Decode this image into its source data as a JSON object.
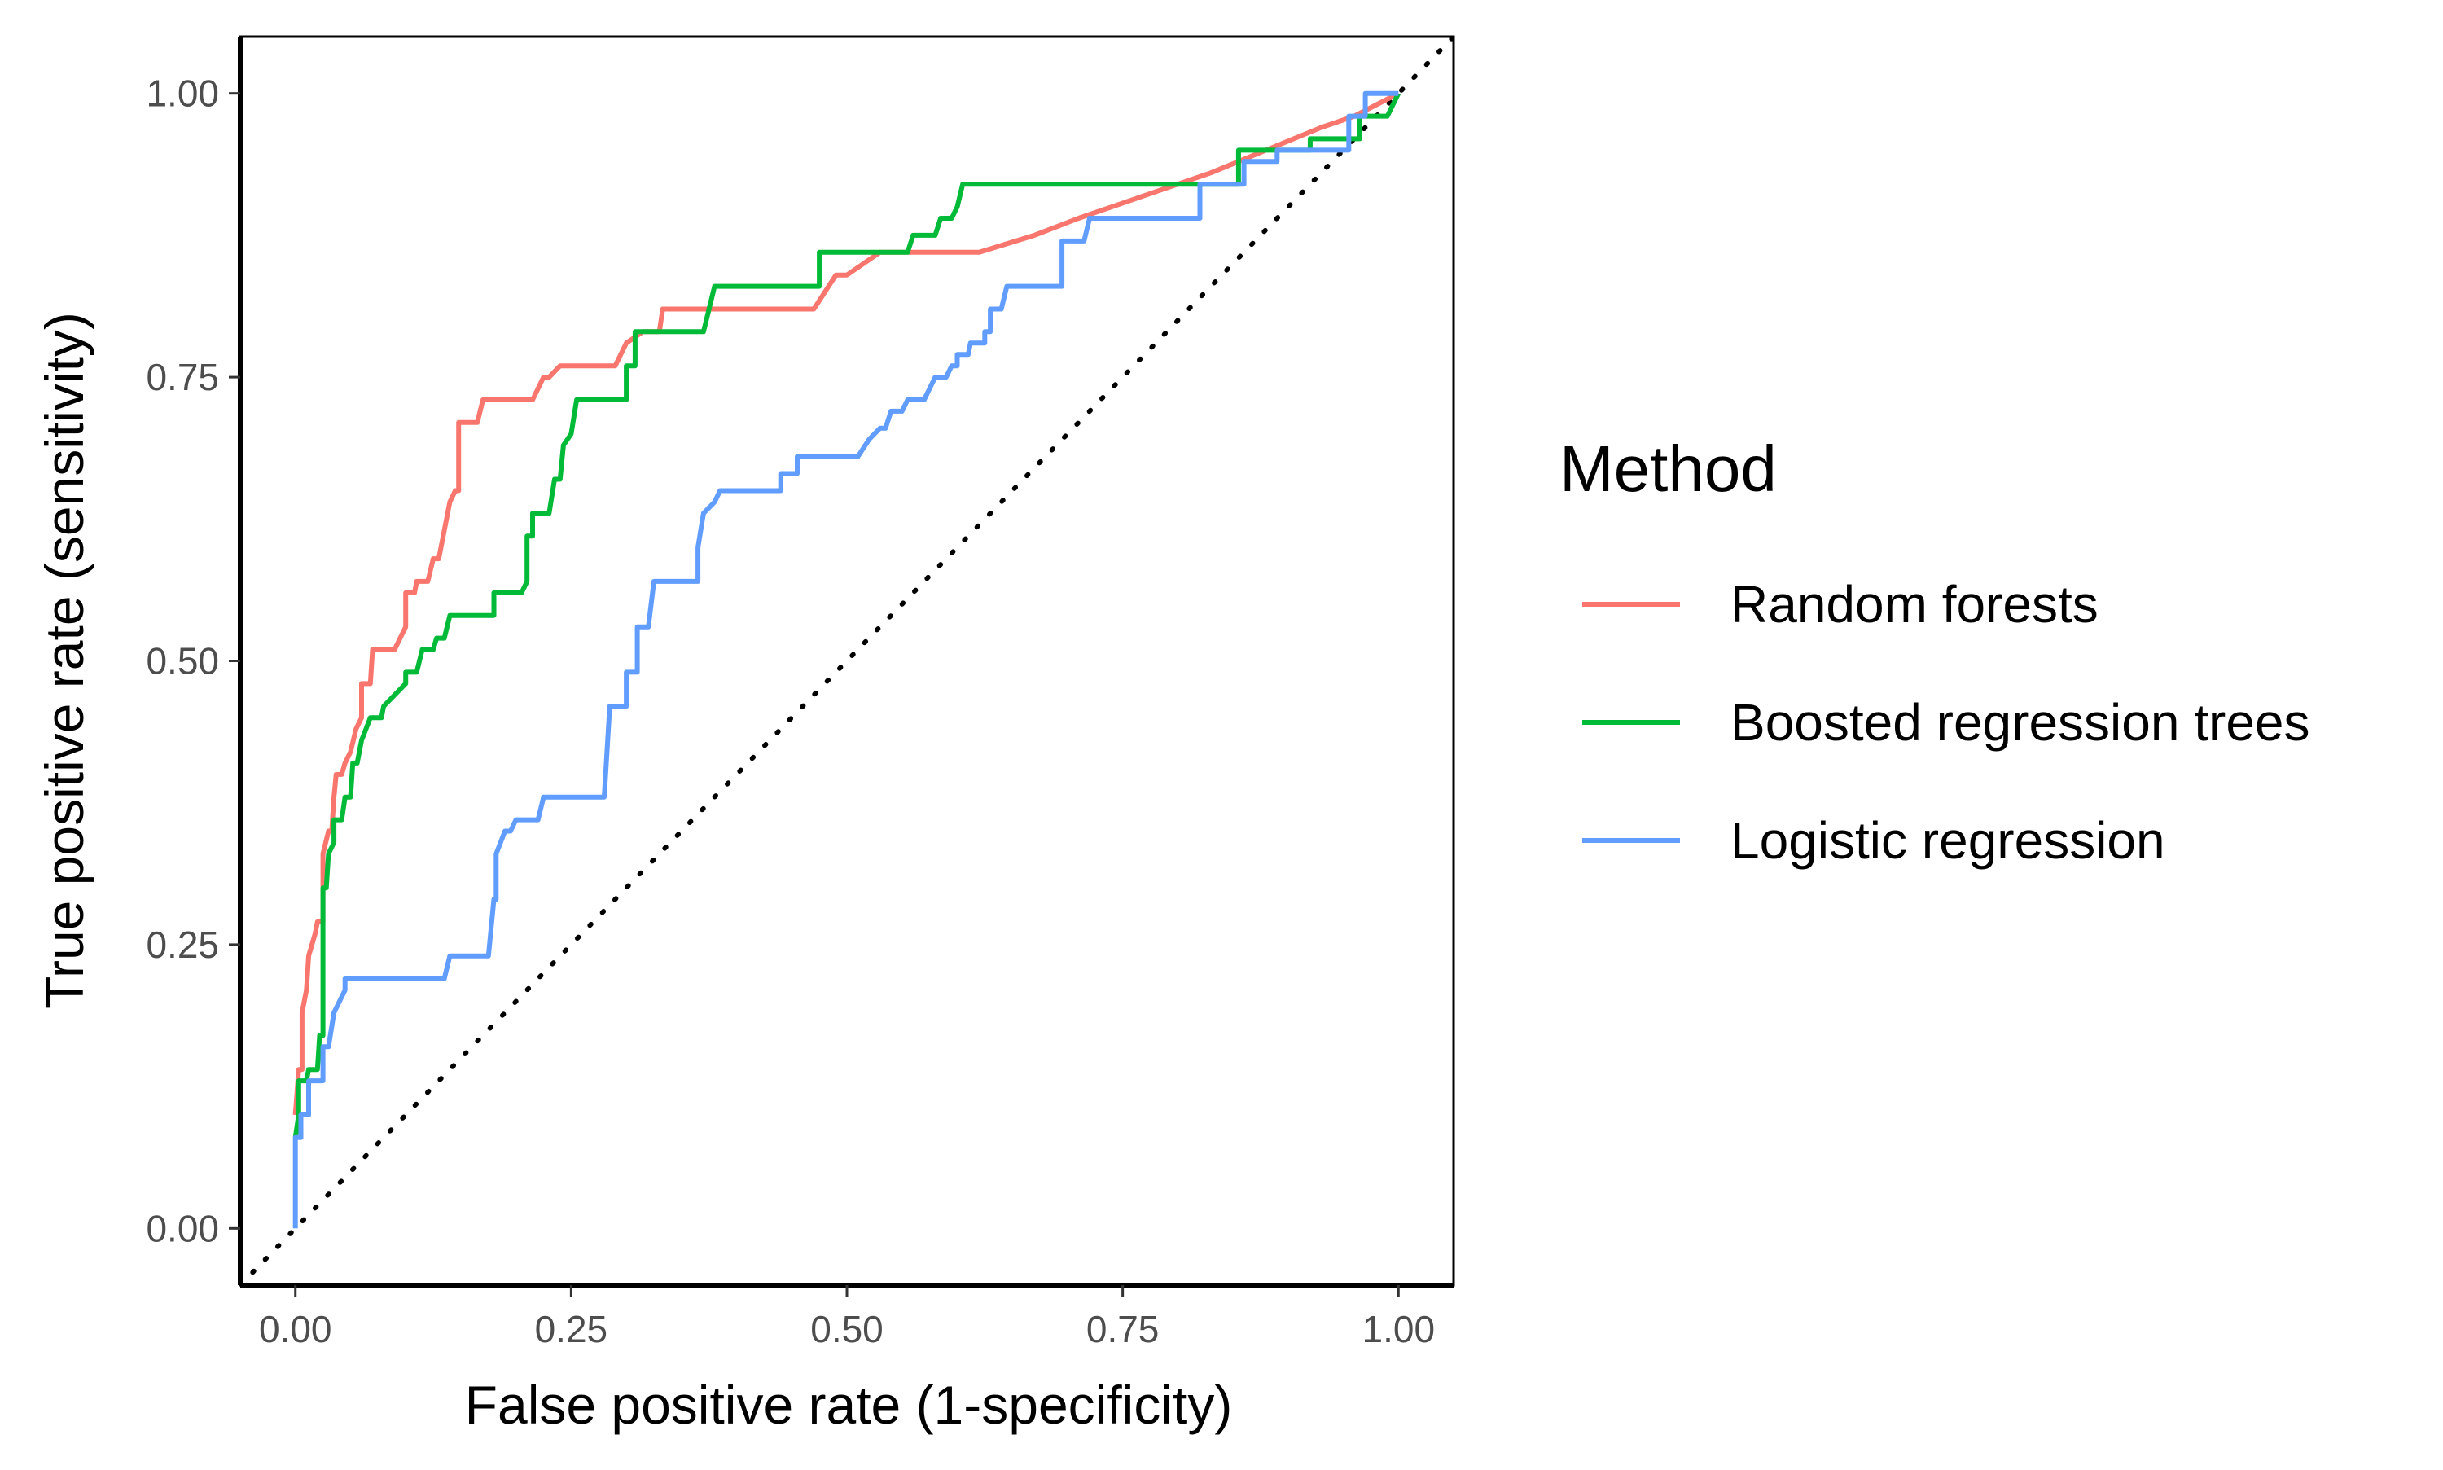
{
  "chart_data": {
    "type": "line",
    "title": "",
    "xlabel": "False positive rate (1-specificity)",
    "ylabel": "True positive rate (sensitivity)",
    "xlim": [
      -0.05,
      1.05
    ],
    "ylim": [
      -0.05,
      1.05
    ],
    "x_ticks": [
      0.0,
      0.25,
      0.5,
      0.75,
      1.0
    ],
    "y_ticks": [
      0.0,
      0.25,
      0.5,
      0.75,
      1.0
    ],
    "x_tick_labels": [
      "0.00",
      "0.25",
      "0.50",
      "0.75",
      "1.00"
    ],
    "y_tick_labels": [
      "0.00",
      "0.25",
      "0.50",
      "0.75",
      "1.00"
    ],
    "grid": false,
    "legend_title": "Method",
    "legend_position": "right",
    "reference_line": {
      "style": "dotted",
      "color": "#000000",
      "points": [
        [
          -0.05,
          -0.05
        ],
        [
          1.05,
          1.05
        ]
      ]
    },
    "series": [
      {
        "name": "Random forests",
        "color": "#F8766D",
        "points": [
          [
            0,
            0.1
          ],
          [
            0.003,
            0.14
          ],
          [
            0.006,
            0.14
          ],
          [
            0.006,
            0.19
          ],
          [
            0.01,
            0.21
          ],
          [
            0.012,
            0.24
          ],
          [
            0.018,
            0.26
          ],
          [
            0.02,
            0.27
          ],
          [
            0.025,
            0.27
          ],
          [
            0.025,
            0.33
          ],
          [
            0.03,
            0.35
          ],
          [
            0.033,
            0.35
          ],
          [
            0.035,
            0.38
          ],
          [
            0.037,
            0.4
          ],
          [
            0.042,
            0.4
          ],
          [
            0.045,
            0.41
          ],
          [
            0.05,
            0.42
          ],
          [
            0.055,
            0.44
          ],
          [
            0.06,
            0.45
          ],
          [
            0.06,
            0.48
          ],
          [
            0.068,
            0.48
          ],
          [
            0.07,
            0.51
          ],
          [
            0.09,
            0.51
          ],
          [
            0.095,
            0.52
          ],
          [
            0.1,
            0.53
          ],
          [
            0.1,
            0.56
          ],
          [
            0.108,
            0.56
          ],
          [
            0.11,
            0.57
          ],
          [
            0.12,
            0.57
          ],
          [
            0.125,
            0.59
          ],
          [
            0.13,
            0.59
          ],
          [
            0.14,
            0.64
          ],
          [
            0.145,
            0.65
          ],
          [
            0.148,
            0.65
          ],
          [
            0.148,
            0.71
          ],
          [
            0.165,
            0.71
          ],
          [
            0.17,
            0.73
          ],
          [
            0.215,
            0.73
          ],
          [
            0.225,
            0.75
          ],
          [
            0.23,
            0.75
          ],
          [
            0.24,
            0.76
          ],
          [
            0.29,
            0.76
          ],
          [
            0.3,
            0.78
          ],
          [
            0.315,
            0.79
          ],
          [
            0.33,
            0.79
          ],
          [
            0.333,
            0.81
          ],
          [
            0.47,
            0.81
          ],
          [
            0.49,
            0.84
          ],
          [
            0.5,
            0.84
          ],
          [
            0.53,
            0.86
          ],
          [
            0.62,
            0.86
          ],
          [
            0.67,
            0.875
          ],
          [
            0.71,
            0.89
          ],
          [
            0.77,
            0.91
          ],
          [
            0.83,
            0.93
          ],
          [
            0.88,
            0.95
          ],
          [
            0.93,
            0.97
          ],
          [
            0.96,
            0.98
          ],
          [
            1.0,
            1.0
          ]
        ]
      },
      {
        "name": "Boosted regression trees",
        "color": "#00BA38",
        "points": [
          [
            0,
            0.08
          ],
          [
            0.003,
            0.1
          ],
          [
            0.003,
            0.13
          ],
          [
            0.01,
            0.13
          ],
          [
            0.012,
            0.14
          ],
          [
            0.02,
            0.14
          ],
          [
            0.022,
            0.17
          ],
          [
            0.025,
            0.17
          ],
          [
            0.025,
            0.3
          ],
          [
            0.028,
            0.3
          ],
          [
            0.03,
            0.33
          ],
          [
            0.035,
            0.34
          ],
          [
            0.035,
            0.36
          ],
          [
            0.042,
            0.36
          ],
          [
            0.045,
            0.38
          ],
          [
            0.05,
            0.38
          ],
          [
            0.052,
            0.41
          ],
          [
            0.056,
            0.41
          ],
          [
            0.06,
            0.43
          ],
          [
            0.068,
            0.45
          ],
          [
            0.078,
            0.45
          ],
          [
            0.08,
            0.46
          ],
          [
            0.09,
            0.47
          ],
          [
            0.1,
            0.48
          ],
          [
            0.1,
            0.49
          ],
          [
            0.11,
            0.49
          ],
          [
            0.115,
            0.51
          ],
          [
            0.125,
            0.51
          ],
          [
            0.128,
            0.52
          ],
          [
            0.135,
            0.52
          ],
          [
            0.14,
            0.54
          ],
          [
            0.18,
            0.54
          ],
          [
            0.18,
            0.56
          ],
          [
            0.205,
            0.56
          ],
          [
            0.21,
            0.57
          ],
          [
            0.21,
            0.61
          ],
          [
            0.215,
            0.61
          ],
          [
            0.215,
            0.63
          ],
          [
            0.23,
            0.63
          ],
          [
            0.235,
            0.66
          ],
          [
            0.24,
            0.66
          ],
          [
            0.243,
            0.69
          ],
          [
            0.25,
            0.7
          ],
          [
            0.255,
            0.73
          ],
          [
            0.3,
            0.73
          ],
          [
            0.3,
            0.76
          ],
          [
            0.308,
            0.76
          ],
          [
            0.308,
            0.79
          ],
          [
            0.37,
            0.79
          ],
          [
            0.375,
            0.81
          ],
          [
            0.38,
            0.83
          ],
          [
            0.475,
            0.83
          ],
          [
            0.475,
            0.86
          ],
          [
            0.555,
            0.86
          ],
          [
            0.56,
            0.875
          ],
          [
            0.58,
            0.875
          ],
          [
            0.585,
            0.89
          ],
          [
            0.595,
            0.89
          ],
          [
            0.6,
            0.9
          ],
          [
            0.605,
            0.92
          ],
          [
            0.855,
            0.92
          ],
          [
            0.855,
            0.95
          ],
          [
            0.92,
            0.95
          ],
          [
            0.92,
            0.96
          ],
          [
            0.965,
            0.96
          ],
          [
            0.965,
            0.98
          ],
          [
            0.99,
            0.98
          ],
          [
            1.0,
            1.0
          ]
        ]
      },
      {
        "name": "Logistic regression",
        "color": "#619CFF",
        "points": [
          [
            0,
            0.0
          ],
          [
            0,
            0.08
          ],
          [
            0.005,
            0.08
          ],
          [
            0.005,
            0.1
          ],
          [
            0.012,
            0.1
          ],
          [
            0.012,
            0.13
          ],
          [
            0.025,
            0.13
          ],
          [
            0.025,
            0.16
          ],
          [
            0.03,
            0.16
          ],
          [
            0.035,
            0.19
          ],
          [
            0.04,
            0.2
          ],
          [
            0.045,
            0.21
          ],
          [
            0.045,
            0.22
          ],
          [
            0.135,
            0.22
          ],
          [
            0.14,
            0.24
          ],
          [
            0.175,
            0.24
          ],
          [
            0.18,
            0.29
          ],
          [
            0.182,
            0.29
          ],
          [
            0.182,
            0.33
          ],
          [
            0.19,
            0.35
          ],
          [
            0.195,
            0.35
          ],
          [
            0.2,
            0.36
          ],
          [
            0.22,
            0.36
          ],
          [
            0.225,
            0.38
          ],
          [
            0.28,
            0.38
          ],
          [
            0.285,
            0.46
          ],
          [
            0.3,
            0.46
          ],
          [
            0.3,
            0.49
          ],
          [
            0.31,
            0.49
          ],
          [
            0.31,
            0.53
          ],
          [
            0.32,
            0.53
          ],
          [
            0.325,
            0.57
          ],
          [
            0.365,
            0.57
          ],
          [
            0.365,
            0.6
          ],
          [
            0.37,
            0.63
          ],
          [
            0.38,
            0.64
          ],
          [
            0.385,
            0.65
          ],
          [
            0.44,
            0.65
          ],
          [
            0.44,
            0.665
          ],
          [
            0.455,
            0.665
          ],
          [
            0.455,
            0.68
          ],
          [
            0.51,
            0.68
          ],
          [
            0.52,
            0.695
          ],
          [
            0.53,
            0.705
          ],
          [
            0.535,
            0.705
          ],
          [
            0.54,
            0.72
          ],
          [
            0.55,
            0.72
          ],
          [
            0.555,
            0.73
          ],
          [
            0.57,
            0.73
          ],
          [
            0.58,
            0.75
          ],
          [
            0.59,
            0.75
          ],
          [
            0.595,
            0.76
          ],
          [
            0.6,
            0.76
          ],
          [
            0.6,
            0.77
          ],
          [
            0.61,
            0.77
          ],
          [
            0.612,
            0.78
          ],
          [
            0.625,
            0.78
          ],
          [
            0.625,
            0.79
          ],
          [
            0.63,
            0.79
          ],
          [
            0.63,
            0.81
          ],
          [
            0.64,
            0.81
          ],
          [
            0.645,
            0.83
          ],
          [
            0.695,
            0.83
          ],
          [
            0.695,
            0.87
          ],
          [
            0.715,
            0.87
          ],
          [
            0.72,
            0.89
          ],
          [
            0.82,
            0.89
          ],
          [
            0.82,
            0.92
          ],
          [
            0.86,
            0.92
          ],
          [
            0.86,
            0.94
          ],
          [
            0.89,
            0.94
          ],
          [
            0.89,
            0.95
          ],
          [
            0.955,
            0.95
          ],
          [
            0.955,
            0.98
          ],
          [
            0.97,
            0.98
          ],
          [
            0.97,
            1.0
          ],
          [
            1.0,
            1.0
          ]
        ]
      }
    ]
  }
}
